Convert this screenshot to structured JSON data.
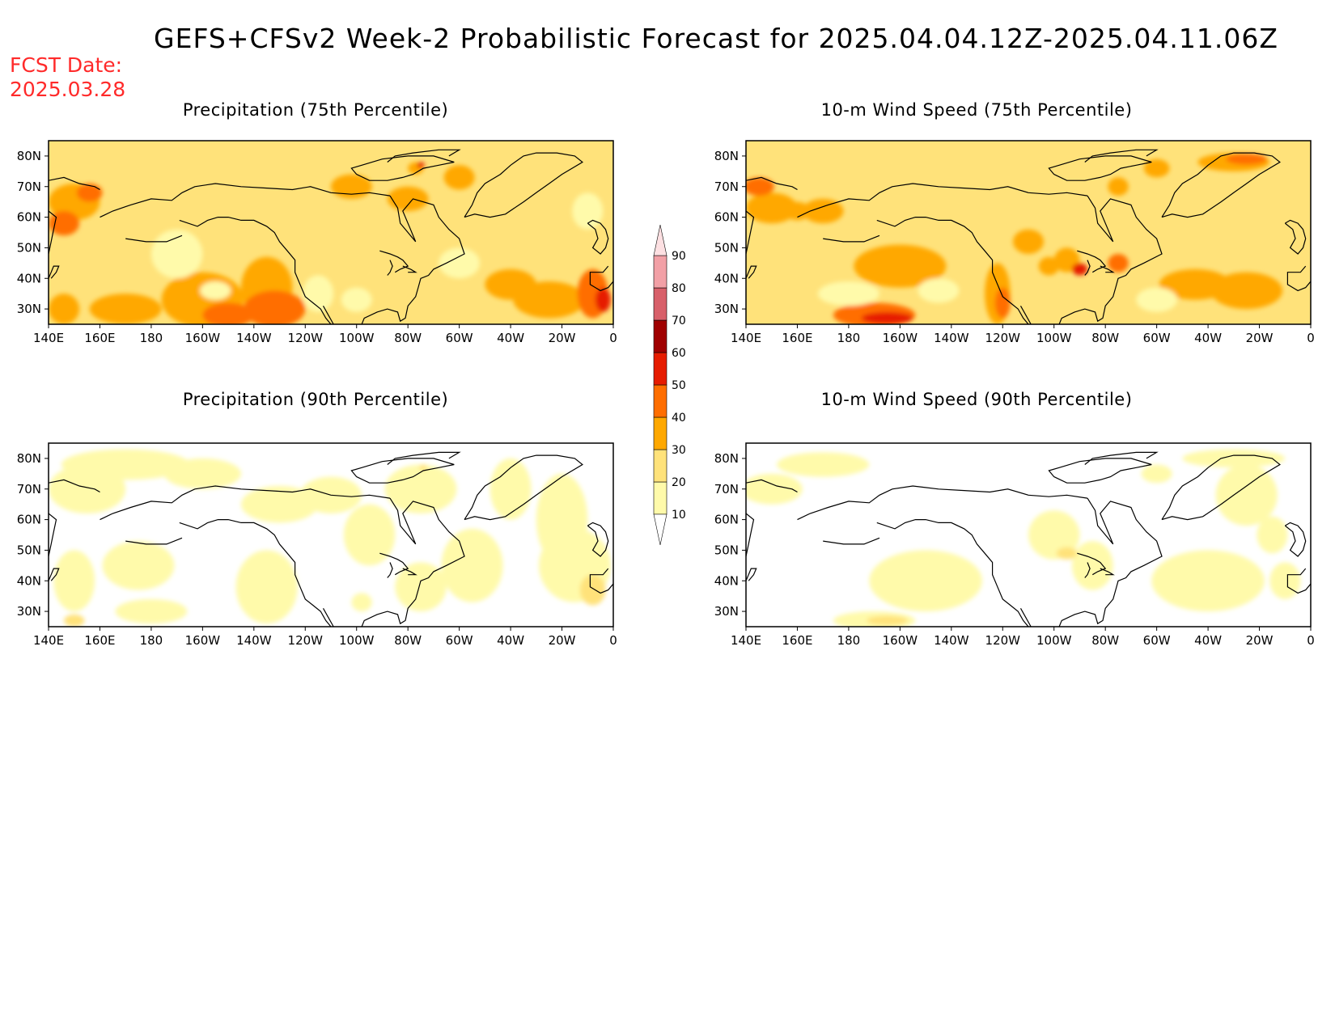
{
  "header": {
    "title": "GEFS+CFSv2 Week-2 Probabilistic Forecast for 2025.04.04.12Z-2025.04.11.06Z",
    "fcst_label": "FCST Date:",
    "fcst_date": "2025.03.28"
  },
  "panels": [
    {
      "id": "precip75",
      "title": "Precipitation (75th Percentile)",
      "field": "precip",
      "percentile": 75
    },
    {
      "id": "wind75",
      "title": "10-m Wind Speed (75th Percentile)",
      "field": "wind",
      "percentile": 75
    },
    {
      "id": "precip90",
      "title": "Precipitation (90th Percentile)",
      "field": "precip",
      "percentile": 90
    },
    {
      "id": "wind90",
      "title": "10-m Wind Speed (90th Percentile)",
      "field": "wind",
      "percentile": 90
    }
  ],
  "axes": {
    "lon_labels": [
      "140E",
      "160E",
      "180",
      "160W",
      "140W",
      "120W",
      "100W",
      "80W",
      "60W",
      "40W",
      "20W",
      "0"
    ],
    "lat_labels": [
      "80N",
      "70N",
      "60N",
      "50N",
      "40N",
      "30N"
    ],
    "lon_range": [
      140,
      360
    ],
    "lat_range": [
      25,
      85
    ]
  },
  "colorbar": {
    "levels": [
      "10",
      "20",
      "30",
      "40",
      "50",
      "60",
      "70",
      "80",
      "90"
    ],
    "colors": [
      "#fffaaa",
      "#ffe27a",
      "#ffa800",
      "#ff6e00",
      "#e61c00",
      "#a00000",
      "#d8606a",
      "#f2a0a6",
      "#fde0e2"
    ]
  }
}
